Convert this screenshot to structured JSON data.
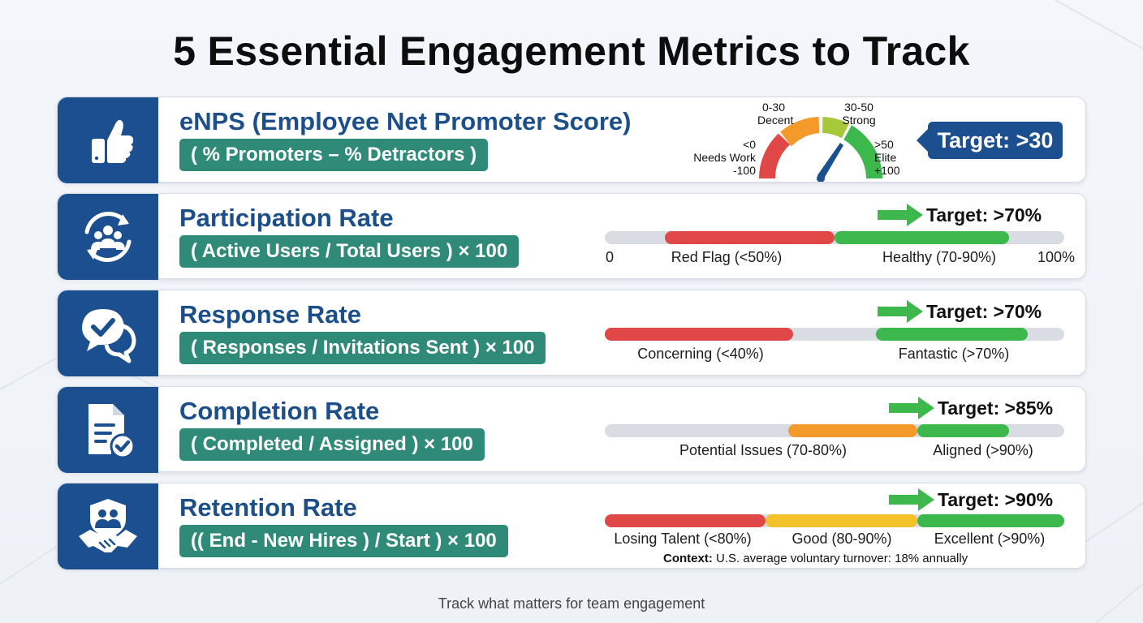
{
  "title": "5 Essential Engagement Metrics to Track",
  "footer": "Track what matters for team engagement",
  "colors": {
    "navy": "#1b4f8f",
    "teal": "#2f8a78",
    "red": "#e04848",
    "orange": "#f39a2b",
    "yellow": "#f3c22a",
    "green": "#3cb84c",
    "lime": "#a6c93a",
    "track": "#d9dde3"
  },
  "metrics": [
    {
      "title": "eNPS (Employee Net Promoter Score)",
      "formula": "( % Promoters – % Detractors )",
      "icon": "thumbs-up-icon",
      "gauge": {
        "range": [
          -100,
          100
        ],
        "needle_value": 35,
        "labels": {
          "needs_work_range": "<0",
          "needs_work": "Needs Work",
          "min": "-100",
          "decent_range": "0-30",
          "decent": "Decent",
          "strong_range": "30-50",
          "strong": "Strong",
          "elite_range": ">50",
          "elite": "Elite",
          "max": "+100"
        }
      },
      "target": "Target: >30"
    },
    {
      "title": "Participation Rate",
      "formula": "( Active Users / Total Users ) × 100",
      "icon": "users-cycle-icon",
      "target": "Target: >70%",
      "segments": [
        {
          "from": 13,
          "to": 50,
          "color": "#e04848"
        },
        {
          "from": 50,
          "to": 88,
          "color": "#3cb84c"
        }
      ],
      "labels": {
        "start": "0",
        "red": "Red Flag (<50%)",
        "green": "Healthy (70-90%)",
        "end": "100%"
      }
    },
    {
      "title": "Response Rate",
      "formula": "( Responses / Invitations Sent ) × 100",
      "icon": "chat-check-icon",
      "target": "Target: >70%",
      "segments": [
        {
          "from": 0,
          "to": 41,
          "color": "#e04848"
        },
        {
          "from": 59,
          "to": 92,
          "color": "#3cb84c"
        }
      ],
      "labels": {
        "red": "Concerning (<40%)",
        "green": "Fantastic (>70%)"
      }
    },
    {
      "title": "Completion Rate",
      "formula": "( Completed / Assigned ) × 100",
      "icon": "document-check-icon",
      "target": "Target: >85%",
      "segments": [
        {
          "from": 40,
          "to": 68,
          "color": "#f39a2b"
        },
        {
          "from": 68,
          "to": 88,
          "color": "#3cb84c"
        }
      ],
      "labels": {
        "orange": "Potential Issues (70-80%)",
        "green": "Aligned (>90%)"
      }
    },
    {
      "title": "Retention Rate",
      "formula": "(( End - New Hires ) / Start ) × 100",
      "icon": "handshake-shield-icon",
      "target": "Target: >90%",
      "segments": [
        {
          "from": 0,
          "to": 35,
          "color": "#e04848"
        },
        {
          "from": 35,
          "to": 68,
          "color": "#f3c22a"
        },
        {
          "from": 68,
          "to": 100,
          "color": "#3cb84c"
        }
      ],
      "labels": {
        "red": "Losing Talent (<80%)",
        "yellow": "Good (80-90%)",
        "green": "Excellent (>90%)"
      },
      "context_label": "Context:",
      "context_text": " U.S. average voluntary turnover: 18% annually"
    }
  ]
}
